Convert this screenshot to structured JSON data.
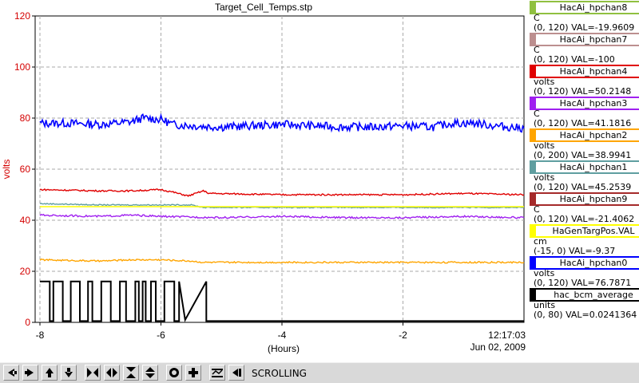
{
  "title": "Target_Cell_Temps.stp",
  "ylabel": "volts",
  "xlabel": "(Hours)",
  "time_label": "12:17:03",
  "date_label": "Jun 02, 2009",
  "status": "SCROLLING",
  "chart_data": {
    "type": "line",
    "title": "Target_Cell_Temps.stp",
    "xlabel": "(Hours)",
    "ylabel": "volts",
    "xlim": [
      -8,
      0
    ],
    "ylim": [
      0,
      120
    ],
    "xticks": [
      "-8",
      "-6",
      "-4",
      "-2"
    ],
    "yticks": [
      "0",
      "20",
      "40",
      "60",
      "80",
      "100",
      "120"
    ],
    "grid": true,
    "legend_position": "right",
    "series": [
      {
        "name": "HacAi_hpchan0",
        "color": "#0000ff",
        "x": [
          -8,
          -7.5,
          -7,
          -6.5,
          -6.3,
          -6.0,
          -5.8,
          -5.5,
          -5.0,
          -4.5,
          -4.0,
          -3.5,
          -3.0,
          -2.5,
          -2.0,
          -1.5,
          -1.2,
          -0.8,
          -0.5,
          0
        ],
        "y": [
          78,
          78,
          77.5,
          78.5,
          80,
          79.5,
          77.5,
          77,
          76.5,
          77,
          77.5,
          77,
          76.5,
          76.5,
          77,
          76.5,
          78,
          78,
          77,
          76
        ]
      },
      {
        "name": "HacAi_hpchan4",
        "color": "#e00000",
        "x": [
          -8,
          -7,
          -6.5,
          -6.0,
          -5.8,
          -5.55,
          -5.3,
          -5.2,
          -4,
          -3,
          -2,
          -1,
          0
        ],
        "y": [
          52,
          51.5,
          51.5,
          52,
          51,
          49.5,
          51.5,
          50.5,
          50,
          50,
          50,
          50.5,
          50
        ]
      },
      {
        "name": "HacAi_hpchan1",
        "color": "#5f9ea0",
        "x": [
          -8,
          -7,
          -6,
          -5.5,
          -5.3,
          -4,
          -2,
          0
        ],
        "y": [
          46.5,
          46,
          46,
          46,
          45,
          45,
          45,
          45
        ]
      },
      {
        "name": "HaGenTargPos.VAL",
        "color": "#ffff00",
        "x": [
          -8,
          -7,
          -6,
          -5.3,
          -4,
          -2,
          0
        ],
        "y": [
          45.3,
          45.3,
          45.3,
          45.3,
          45.3,
          45.3,
          45.3
        ]
      },
      {
        "name": "HacAi_hpchan3",
        "color": "#a020f0",
        "x": [
          -8,
          -7,
          -6.5,
          -6,
          -5,
          -4,
          -3,
          -2,
          -1,
          0
        ],
        "y": [
          42,
          41.5,
          42,
          41.5,
          41,
          41.5,
          41,
          41,
          41.5,
          41
        ]
      },
      {
        "name": "HacAi_hpchan2",
        "color": "#ffa500",
        "x": [
          -8,
          -7,
          -6.5,
          -6,
          -5.5,
          -5.3,
          -4,
          -2,
          0
        ],
        "y": [
          24.5,
          24,
          24.5,
          24.5,
          24,
          23.5,
          23.5,
          23.5,
          23.5
        ]
      },
      {
        "name": "hac_bcm_average",
        "color": "#000000",
        "x": [
          -8,
          -5.7,
          -5.6,
          -5.25,
          -5.25,
          -4,
          -2,
          0
        ],
        "y": [
          16,
          16,
          1,
          16,
          0.5,
          0.5,
          0.5,
          0.5
        ]
      }
    ]
  },
  "legend": [
    {
      "name": "HacAi_hpchan8",
      "color": "#90c040",
      "unit": "C",
      "range": "(0, 120) VAL=-19.9609"
    },
    {
      "name": "HacAi_hpchan7",
      "color": "#bc8f8f",
      "unit": "C",
      "range": "(0, 120) VAL=-100"
    },
    {
      "name": "HacAi_hpchan4",
      "color": "#e00000",
      "unit": "volts",
      "range": "(0, 120) VAL=50.2148"
    },
    {
      "name": "HacAi_hpchan3",
      "color": "#a020f0",
      "unit": "C",
      "range": "(0, 120) VAL=41.1816"
    },
    {
      "name": "HacAi_hpchan2",
      "color": "#ffa500",
      "unit": "volts",
      "range": "(0, 200) VAL=38.9941"
    },
    {
      "name": "HacAi_hpchan1",
      "color": "#5f9ea0",
      "unit": "volts",
      "range": "(0, 120) VAL=45.2539"
    },
    {
      "name": "HacAi_hpchan9",
      "color": "#a52a2a",
      "unit": "C",
      "range": "(0, 120) VAL=-21.4062"
    },
    {
      "name": "HaGenTargPos.VAL",
      "color": "#ffff00",
      "unit": "cm",
      "range": "(-15, 0) VAL=-9.37"
    },
    {
      "name": "HacAi_hpchan0",
      "color": "#0000ff",
      "unit": "volts",
      "range": "(0, 120) VAL=76.7871"
    },
    {
      "name": "hac_bcm_average",
      "color": "#000000",
      "unit": "units",
      "range": "(0, 80) VAL=0.0241364"
    }
  ],
  "toolbar": [
    {
      "name": "scroll-left-button",
      "icon": "arrow-left-icon"
    },
    {
      "name": "scroll-right-button",
      "icon": "arrow-right-icon"
    },
    {
      "name": "scroll-up-button",
      "icon": "arrow-up-icon"
    },
    {
      "name": "scroll-down-button",
      "icon": "arrow-down-icon"
    },
    {
      "name": "zoom-in-x-button",
      "icon": "zoom-in-horizontal-icon"
    },
    {
      "name": "zoom-out-x-button",
      "icon": "zoom-out-horizontal-icon"
    },
    {
      "name": "zoom-in-y-button",
      "icon": "zoom-in-vertical-icon"
    },
    {
      "name": "zoom-out-y-button",
      "icon": "zoom-out-vertical-icon"
    },
    {
      "name": "center-button",
      "icon": "target-icon"
    },
    {
      "name": "add-button",
      "icon": "plus-icon"
    },
    {
      "name": "autoscale-button",
      "icon": "autoscale-icon"
    },
    {
      "name": "scroll-toggle-button",
      "icon": "scroll-to-end-icon"
    }
  ]
}
